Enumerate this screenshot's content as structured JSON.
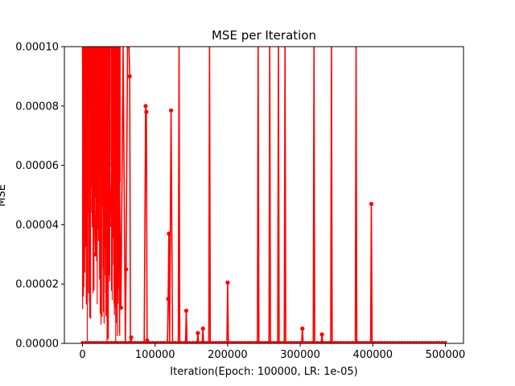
{
  "chart_data": {
    "type": "line",
    "title": "MSE per Iteration",
    "xlabel": "Iteration(Epoch: 100000, LR: 1e-05)",
    "ylabel": "MSE",
    "xlim": [
      -25000,
      525000
    ],
    "ylim": [
      0,
      0.0001
    ],
    "x_ticks": [
      0,
      100000,
      200000,
      300000,
      400000,
      500000
    ],
    "x_tick_labels": [
      "0",
      "100000",
      "200000",
      "300000",
      "400000",
      "500000"
    ],
    "y_ticks": [
      0,
      2e-05,
      4e-05,
      6e-05,
      8e-05,
      0.0001
    ],
    "y_tick_labels": [
      "0.00000",
      "0.00002",
      "0.00004",
      "0.00006",
      "0.00008",
      "0.00010"
    ],
    "grid": false,
    "legend": "none",
    "series": [
      {
        "color": "#ff0000",
        "marker": "circle",
        "x": [
          0,
          2000,
          5000,
          8000,
          12000,
          18000,
          22000,
          28000,
          33000,
          38000,
          42000,
          47000,
          50000,
          53000,
          56000,
          59000,
          60000,
          62000,
          64000,
          65000,
          66000,
          67000,
          68000,
          70000,
          72000,
          85000,
          87000,
          88000,
          89000,
          90000,
          117000,
          118000,
          119000,
          120000,
          122000,
          124000,
          125000,
          126000,
          132000,
          133000,
          134000,
          142000,
          143000,
          144000,
          158000,
          159000,
          160000,
          165000,
          166000,
          167000,
          174000,
          175000,
          176000,
          199000,
          200000,
          201000,
          241000,
          242000,
          243000,
          257000,
          258000,
          259000,
          269000,
          270000,
          271000,
          278000,
          279000,
          280000,
          302000,
          303000,
          304000,
          318000,
          319000,
          320000,
          329000,
          330000,
          331000,
          342000,
          343000,
          344000,
          376000,
          377000,
          378000,
          397000,
          398000,
          399000,
          500000
        ],
        "y": [
          0.0001,
          5e-05,
          0.0001,
          8e-05,
          0.0001,
          3e-05,
          0.0001,
          6e-05,
          0.0001,
          4e-05,
          7.8e-05,
          0.0001,
          7.6e-05,
          1.2e-05,
          0.0001,
          0,
          2.5e-05,
          0.0001,
          0.0001,
          9e-05,
          0,
          2e-06,
          0,
          0,
          0,
          0,
          8e-05,
          7.8e-05,
          1e-06,
          0,
          0,
          1.5e-05,
          3.7e-05,
          0,
          7.85e-05,
          0,
          0,
          0,
          0,
          0.0001,
          0,
          0,
          1.1e-05,
          0,
          0,
          3.5e-06,
          0,
          0,
          5e-06,
          0,
          0,
          0.0001,
          0,
          0,
          2.05e-05,
          0,
          0,
          0.0001,
          0,
          0,
          0.0001,
          0,
          0,
          0.0001,
          0,
          0,
          0.0001,
          0,
          0,
          5e-06,
          0,
          0,
          0.0001,
          0,
          0,
          3e-06,
          0,
          0,
          0.0001,
          0,
          0,
          0.0001,
          0,
          0,
          4.7e-05,
          0,
          0
        ]
      }
    ]
  }
}
